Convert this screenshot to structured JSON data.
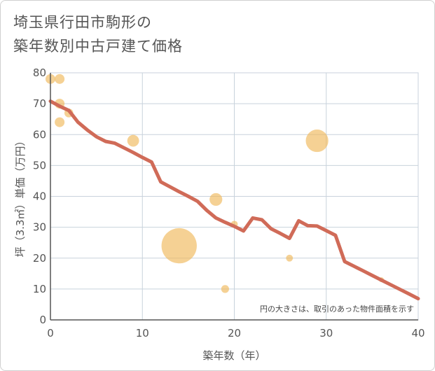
{
  "title_lines": [
    "埼玉県行田市駒形の",
    "築年数別中古戸建て価格"
  ],
  "chart_data": {
    "type": "scatter",
    "title": "埼玉県行田市駒形の築年数別中古戸建て価格",
    "xlabel": "築年数（年）",
    "ylabel": "坪（3.3㎡）単価（万円）",
    "xlim": [
      0,
      40
    ],
    "ylim": [
      0,
      80
    ],
    "x_ticks": [
      0,
      10,
      20,
      30,
      40
    ],
    "y_ticks": [
      0,
      10,
      20,
      30,
      40,
      50,
      60,
      70,
      80
    ],
    "grid": true,
    "annotation": "円の大きさは、取引のあった物件面積を示す",
    "points": [
      {
        "x": 0,
        "y": 78,
        "size": 1.0
      },
      {
        "x": 1,
        "y": 78,
        "size": 1.0
      },
      {
        "x": 1,
        "y": 70,
        "size": 1.0
      },
      {
        "x": 1,
        "y": 64,
        "size": 1.0
      },
      {
        "x": 2,
        "y": 67,
        "size": 0.9
      },
      {
        "x": 9,
        "y": 58,
        "size": 1.2
      },
      {
        "x": 14,
        "y": 24,
        "size": 3.6
      },
      {
        "x": 18,
        "y": 39,
        "size": 1.3
      },
      {
        "x": 20,
        "y": 31,
        "size": 0.7
      },
      {
        "x": 19,
        "y": 10,
        "size": 0.8
      },
      {
        "x": 26,
        "y": 20,
        "size": 0.7
      },
      {
        "x": 29,
        "y": 58,
        "size": 2.3
      },
      {
        "x": 36,
        "y": 13,
        "size": 0.5
      }
    ],
    "trend_line": {
      "x": [
        0,
        1,
        2,
        3,
        4,
        5,
        6,
        7,
        8,
        9,
        10,
        11,
        12,
        13,
        14,
        15,
        16,
        17,
        18,
        19,
        20,
        21,
        22,
        23,
        24,
        25,
        26,
        27,
        28,
        29,
        30,
        31,
        32,
        33,
        34,
        35,
        36,
        37,
        38,
        39,
        40
      ],
      "y": [
        70.8,
        69.2,
        67.8,
        64,
        61.5,
        59.3,
        57.8,
        57.2,
        55.7,
        54.2,
        52.6,
        51.1,
        44.7,
        43.1,
        41.5,
        40,
        38.4,
        35.5,
        33,
        31.6,
        30.3,
        28.8,
        33,
        32.4,
        29.5,
        28,
        26.4,
        32.1,
        30.5,
        30.4,
        28.9,
        27.4,
        18.9,
        17.4,
        15.9,
        14.4,
        12.9,
        11.4,
        9.9,
        8.4,
        6.9
      ]
    },
    "colors": {
      "grid": "#c8d2dc",
      "axis": "#555555",
      "bubble": "#f0b85a",
      "trend": "#d06b58"
    }
  }
}
